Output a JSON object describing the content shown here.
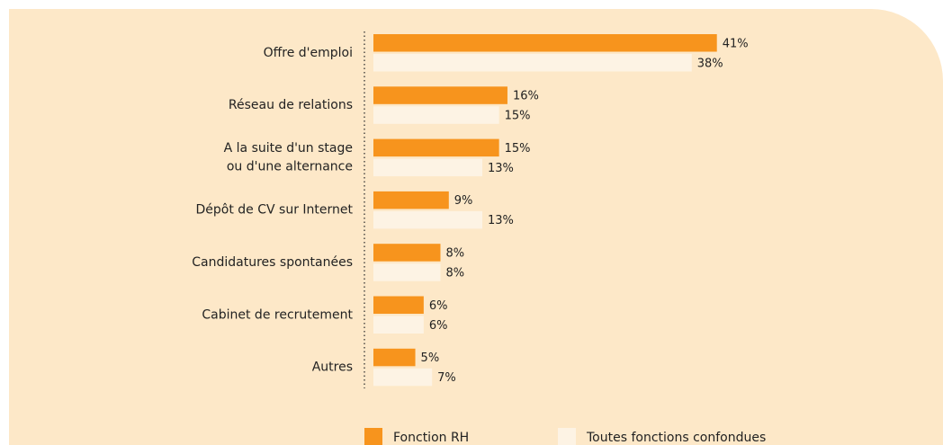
{
  "chart_data": {
    "type": "bar",
    "orientation": "horizontal",
    "categories": [
      "Offre d'emploi",
      "Réseau de  relations",
      "A la suite d'un stage\nou d'une alternance",
      "Dépôt de CV sur Internet",
      "Candidatures spontanées",
      "Cabinet de recrutement",
      "Autres"
    ],
    "series": [
      {
        "name": "Fonction RH",
        "color": "#f7941d",
        "values": [
          41,
          16,
          15,
          9,
          8,
          6,
          5
        ],
        "value_labels": [
          "41%",
          "16%",
          "15%",
          "9%",
          "8%",
          "6%",
          "5%"
        ]
      },
      {
        "name": "Toutes fonctions confondues",
        "color": "#fdf3e4",
        "values": [
          38,
          15,
          13,
          13,
          8,
          6,
          7
        ],
        "value_labels": [
          "38%",
          "15%",
          "13%",
          "13%",
          "8%",
          "6%",
          "7%"
        ]
      }
    ]
  }
}
